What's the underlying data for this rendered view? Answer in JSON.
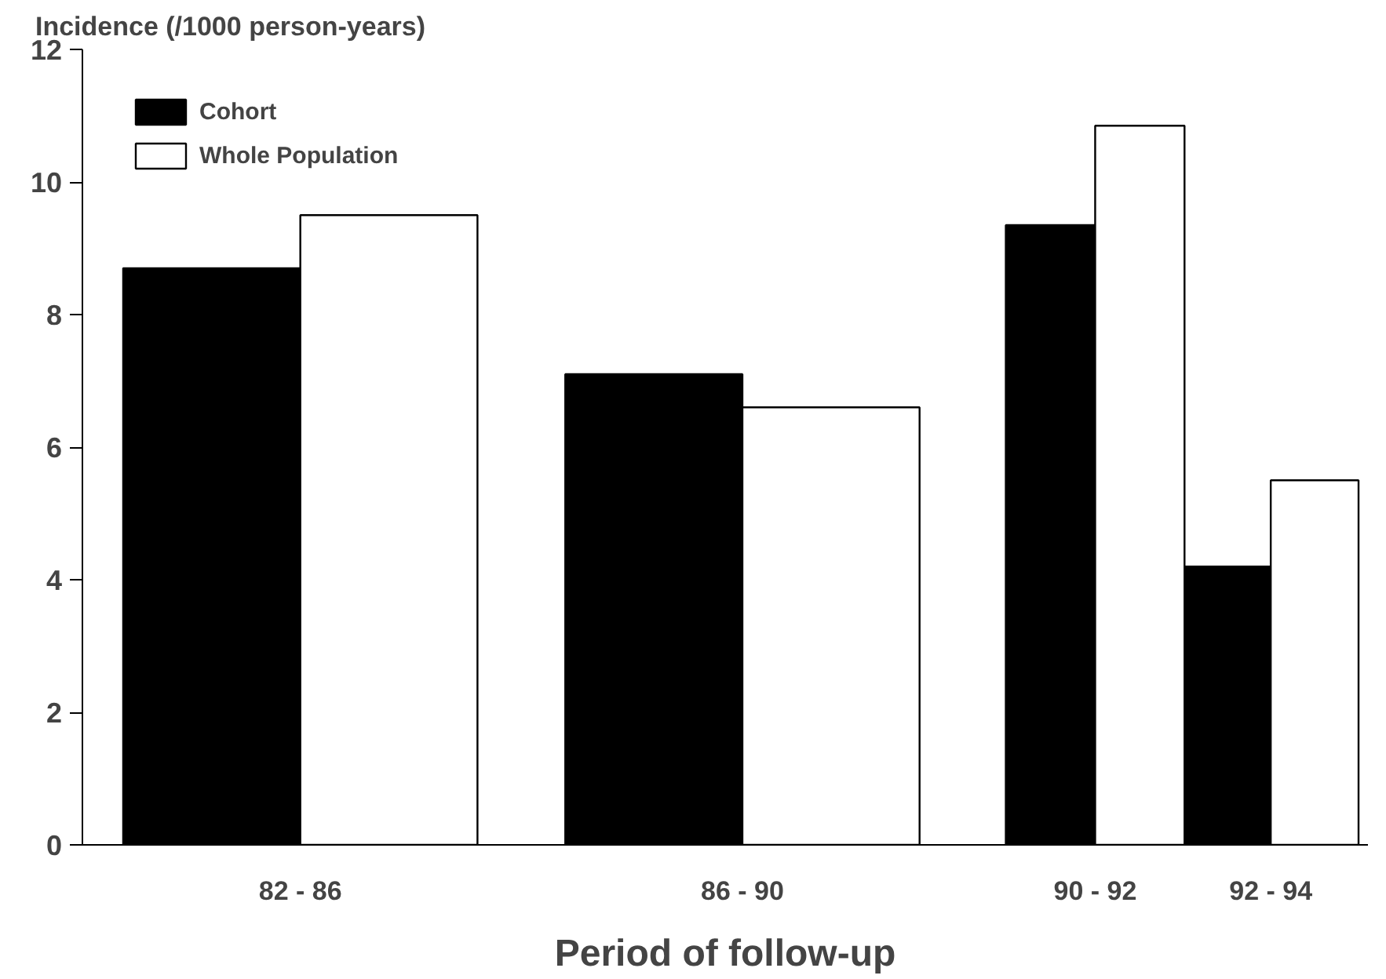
{
  "chart_data": {
    "type": "bar",
    "xlabel": "Period of follow-up",
    "ylabel": "Incidence (/1000 person-years)",
    "categories": [
      "82 - 86",
      "86 - 90",
      "90 - 92",
      "92 - 94"
    ],
    "series": [
      {
        "name": "Cohort",
        "color": "#000000",
        "values": [
          8.7,
          7.1,
          9.35,
          4.2
        ]
      },
      {
        "name": "Whole Population",
        "color": "#ffffff",
        "values": [
          9.5,
          6.6,
          10.85,
          5.5
        ]
      }
    ],
    "ylim": [
      0,
      12
    ],
    "yticks": [
      0,
      2,
      4,
      6,
      8,
      10,
      12
    ],
    "legend": "top left"
  }
}
